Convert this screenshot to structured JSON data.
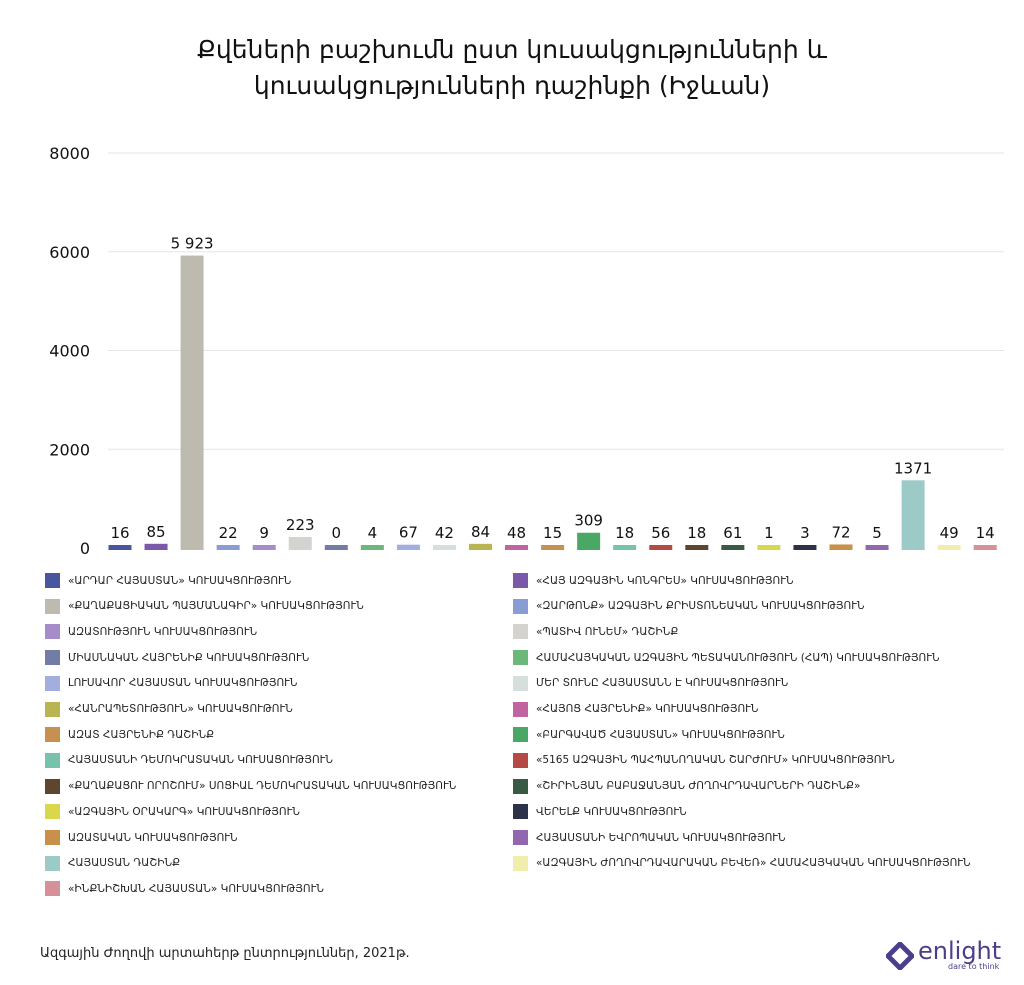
{
  "chart_data": {
    "type": "bar",
    "title": "Քվեների բաշխումն ըստ կուսակցությունների և կուսակցությունների դաշինքի (Իջևան)",
    "ylim": [
      0,
      8000
    ],
    "yticks": [
      0,
      2000,
      4000,
      6000,
      8000
    ],
    "grid": true,
    "legend_placement": "bottom",
    "series": [
      {
        "name": "«ԱՐԴԱՐ ՀԱՅԱՍՏԱՆ» ԿՈՒՍԱԿՑՈՒԹՅՈՒՆ",
        "value": 16,
        "label": "16",
        "color": "#4a55a0"
      },
      {
        "name": "«ՀԱՅ ԱԶԳԱՅԻՆ ԿՈՆԳՐԵՍ» ԿՈՒՍԱԿՑՈՒԹՅՈՒՆ",
        "value": 85,
        "label": "85",
        "color": "#7a5aa8"
      },
      {
        "name": "«ՔԱՂԱՔԱՑԻԱԿԱՆ ՊԱՅՄԱՆԱԳԻՐ» ԿՈՒՍԱԿՑՈՒԹՅՈՒՆ",
        "value": 5923,
        "label": "5 923",
        "color": "#bdbbb0"
      },
      {
        "name": "«ԶԱՐԹՈՆՔ» ԱԶԳԱՅԻՆ ՔՐԻՍՏՈՆԵԱԿԱՆ ԿՈՒՍԱԿՑՈՒԹՅՈՒՆ",
        "value": 22,
        "label": "22",
        "color": "#8a9cd4"
      },
      {
        "name": "ԱԶԱՏՈՒԹՅՈՒՆ ԿՈՒՍԱԿՑՈՒԹՅՈՒՆ",
        "value": 9,
        "label": "9",
        "color": "#a68cc8"
      },
      {
        "name": "«ՊԱՏԻՎ ՈՒՆԵՄ» ԴԱՇԻՆՔ",
        "value": 223,
        "label": "223",
        "color": "#d4d3cf"
      },
      {
        "name": "ՄԻԱՍՆԱԿԱՆ ՀԱՅՐԵՆԻՔ ԿՈՒՍԱԿՑՈՒԹՅՈՒՆ",
        "value": 0,
        "label": "0",
        "color": "#737ca6"
      },
      {
        "name": "ՀԱՄԱՀԱՅԿԱԿԱՆ ԱԶԳԱՅԻՆ ՊԵՏԱԿԱՆՈՒԹՅՈՒՆ (ՀԱՊ) ԿՈՒՍԱԿՑՈՒԹՅՈՒՆ",
        "value": 4,
        "label": "4",
        "color": "#6bb87a"
      },
      {
        "name": "ԼՈՒՍԱՎՈՐ ՀԱՅԱՍՏԱՆ ԿՈՒՍԱԿՑՈՒԹՅՈՒՆ",
        "value": 67,
        "label": "67",
        "color": "#a2aedd"
      },
      {
        "name": "ՄԵՐ ՏՈՒՆԸ ՀԱՅԱՍՏԱՆՆ Է ԿՈՒՍԱԿՑՈՒԹՅՈՒՆ",
        "value": 42,
        "label": "42",
        "color": "#d5dfdc"
      },
      {
        "name": "«ՀԱՆՐԱՊԵՏՈՒԹՅՈՒՆ» ԿՈՒՍԱԿՑՈՒԹՈՒՆ",
        "value": 84,
        "label": "84",
        "color": "#b8b552"
      },
      {
        "name": "«ՀԱՅՈՑ ՀԱՅՐԵՆԻՔ» ԿՈՒՍԱԿՑՈՒԹՅՈՒՆ",
        "value": 48,
        "label": "48",
        "color": "#c063a0"
      },
      {
        "name": "ԱԶԱՏ ՀԱՅՐԵՆԻՔ ԴԱՇԻՆՔ",
        "value": 15,
        "label": "15",
        "color": "#c89050"
      },
      {
        "name": "«ԲԱՐԳԱՎԱԾ ՀԱՅԱՍՏԱՆ» ԿՈՒՍԱԿՑՈՒԹՅՈՒՆ",
        "value": 309,
        "label": "309",
        "color": "#4aa866"
      },
      {
        "name": "ՀԱՅԱՍՏԱՆԻ ԴԵՄՈԿՐԱՏԱԿԱՆ ԿՈՒՍԱՑՈՒԹՅՈՒՆ",
        "value": 18,
        "label": "18",
        "color": "#76c2ac"
      },
      {
        "name": "«5165 ԱԶԳԱՅԻՆ ՊԱՀՊԱՆՈՂԱԿԱՆ ՇԱՐԺՈՒՄ» ԿՈՒՍԱԿՑՈՒԹՅՈՒՆ",
        "value": 56,
        "label": "56",
        "color": "#b54a45"
      },
      {
        "name": "«ՔԱՂԱՔԱՑՈՒ ՈՐՈՇՈՒՄ» ՍՈՑԻԱԼ ԴԵՄՈԿՐԱՏԱԿԱՆ ԿՈՒՍԱԿՑՈՒԹՅՈՒՆ",
        "value": 18,
        "label": "18",
        "color": "#5e4530"
      },
      {
        "name": "«ՇԻՐԻՆՅԱՆ ԲԱԲԱՋԱՆՅԱՆ ԺՈՂՈՎՐԴԱՎԱՐՆԵՐԻ ԴԱՇԻՆՔ»",
        "value": 61,
        "label": "61",
        "color": "#385a44"
      },
      {
        "name": "«ԱԶԳԱՅԻՆ ՕՐԱԿԱՐԳ» ԿՈՒՍԱԿՑՈՒԹՅՈՒՆ",
        "value": 1,
        "label": "1",
        "color": "#d9d84a"
      },
      {
        "name": "ՎԵՐԵԼՔ ԿՈՒՍԱԿՑՈՒԹՅՈՒՆ",
        "value": 3,
        "label": "3",
        "color": "#2c3348"
      },
      {
        "name": "ԱԶԱՏԱԿԱՆ ԿՈՒՍԱԿՑՈՒԹՅՈՒՆ",
        "value": 72,
        "label": "72",
        "color": "#c8904a"
      },
      {
        "name": "ՀԱՅԱՍՏԱՆԻ ԵՎՐՈՊԱԿԱՆ ԿՈՒՍԱԿՑՈՒԹՅՈՒՆ",
        "value": 5,
        "label": "5",
        "color": "#9366b0"
      },
      {
        "name": "ՀԱՅԱՍՏԱՆ ԴԱՇԻՆՔ",
        "value": 1371,
        "label": "1371",
        "color": "#9ccac6"
      },
      {
        "name": "«ԱԶԳԱՅԻՆ ԺՈՂՈՎՐԴԱՎԱՐԱԿԱՆ ԲԵՎԵՌ» ՀԱՄԱՀԱՅԿԱԿԱՆ ԿՈՒՍԱԿՑՈՒԹՅՈՒՆ",
        "value": 49,
        "label": "49",
        "color": "#f0eeaa"
      },
      {
        "name": "«ԻՆՔՆԻՇԽԱՆ ՀԱՅԱՍՏԱՆ» ԿՈՒՍԱԿՑՈՒԹՅՈՒՆ",
        "value": 14,
        "label": "14",
        "color": "#d6909a"
      }
    ]
  },
  "footer": {
    "source": "Ազգային Ժողովի արտահերթ ընտրություններ, 2021թ."
  },
  "logo": {
    "name": "enlight",
    "tagline": "dare to think",
    "color": "#4a3f8a"
  }
}
